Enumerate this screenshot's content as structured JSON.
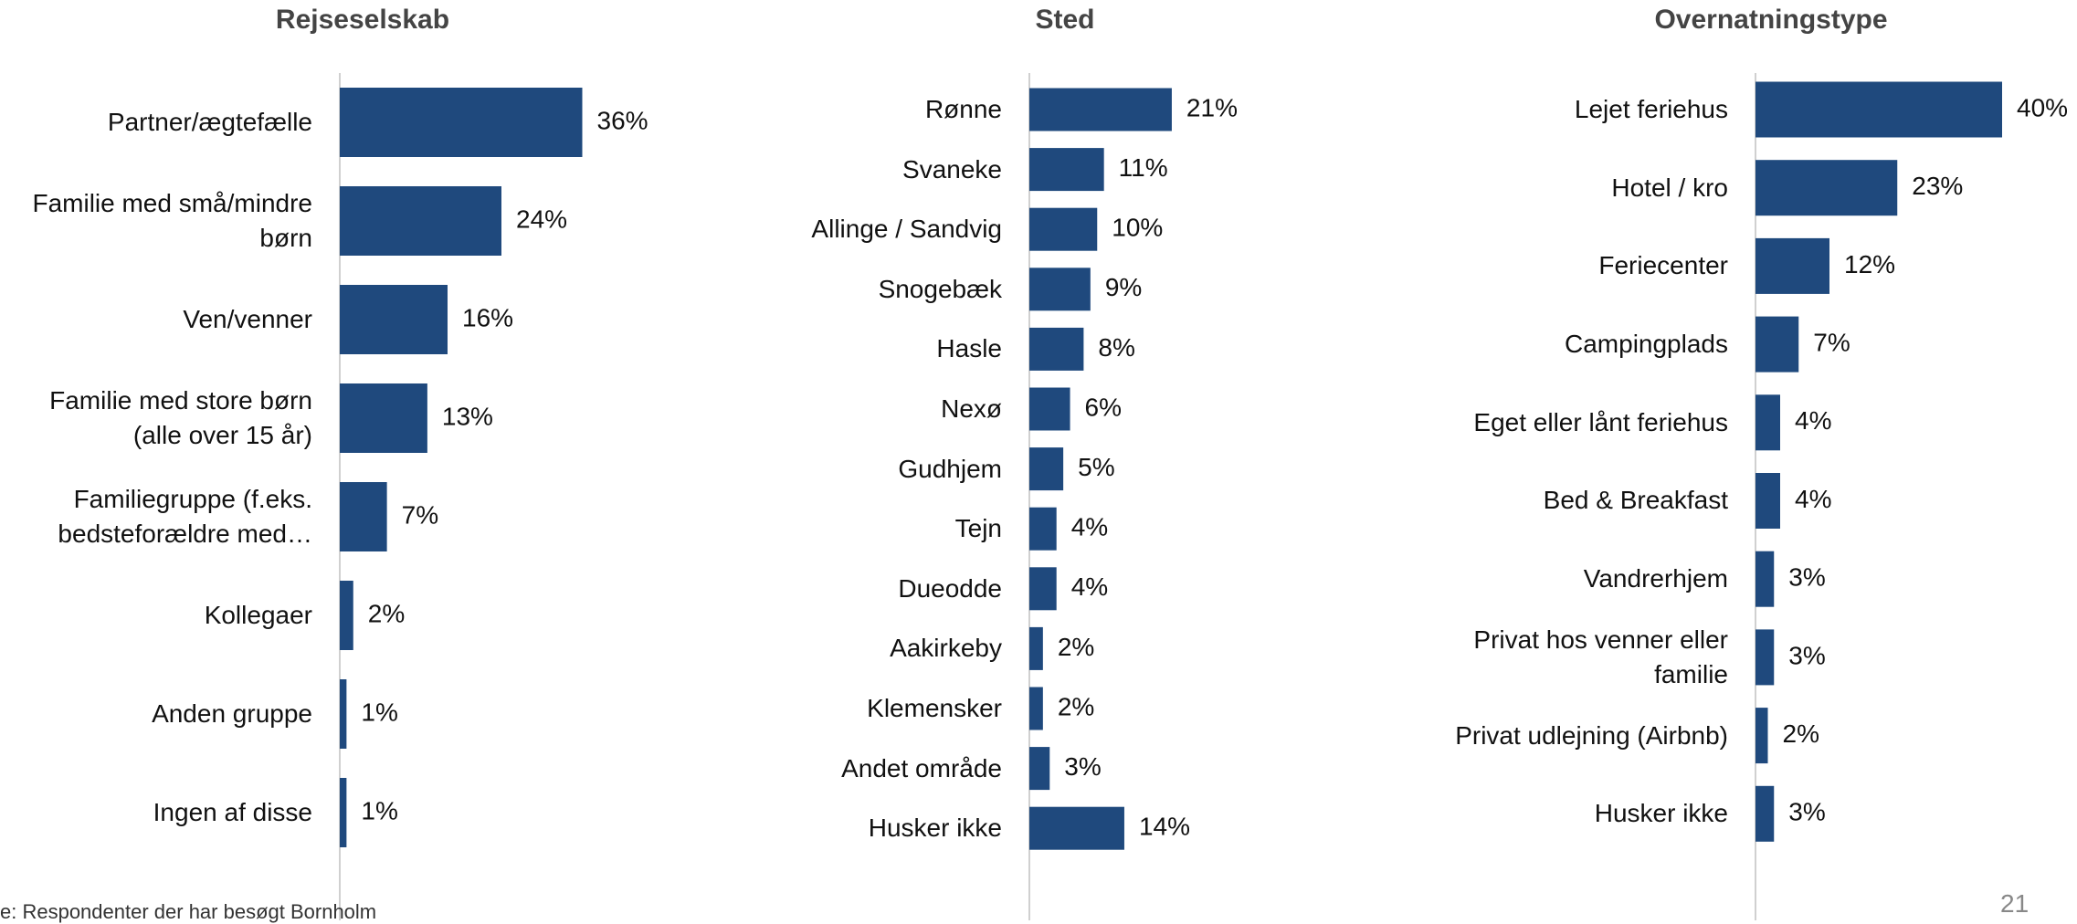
{
  "chart_data": [
    {
      "type": "barh",
      "title": "Rejseselskab",
      "categories": [
        "Partner/ægtefælle",
        "Familie med små/mindre børn",
        "Ven/venner",
        "Familie med store børn (alle over 15 år)",
        "Familiegruppe (f.eks. bedsteforældre med…",
        "Kollegaer",
        "Anden gruppe",
        "Ingen af disse"
      ],
      "values": [
        36,
        24,
        16,
        13,
        7,
        2,
        1,
        1
      ],
      "value_labels": [
        "36%",
        "24%",
        "16%",
        "13%",
        "7%",
        "2%",
        "1%",
        "1%"
      ],
      "color": "#1f497d",
      "xlim": [
        0,
        40
      ]
    },
    {
      "type": "barh",
      "title": "Sted",
      "categories": [
        "Rønne",
        "Svaneke",
        "Allinge / Sandvig",
        "Snogebæk",
        "Hasle",
        "Nexø",
        "Gudhjem",
        "Tejn",
        "Dueodde",
        "Aakirkeby",
        "Klemensker",
        "Andet område",
        "Husker ikke"
      ],
      "values": [
        21,
        11,
        10,
        9,
        8,
        6,
        5,
        4,
        4,
        2,
        2,
        3,
        14
      ],
      "value_labels": [
        "21%",
        "11%",
        "10%",
        "9%",
        "8%",
        "6%",
        "5%",
        "4%",
        "4%",
        "2%",
        "2%",
        "3%",
        "14%"
      ],
      "color": "#1f497d",
      "xlim": [
        0,
        40
      ]
    },
    {
      "type": "barh",
      "title": "Overnatningstype",
      "categories": [
        "Lejet feriehus",
        "Hotel / kro",
        "Feriecenter",
        "Campingplads",
        "Eget eller lånt feriehus",
        "Bed & Breakfast",
        "Vandrerhjem",
        "Privat hos venner eller familie",
        "Privat udlejning (Airbnb)",
        "Husker ikke"
      ],
      "values": [
        40,
        23,
        12,
        7,
        4,
        4,
        3,
        3,
        2,
        3
      ],
      "value_labels": [
        "40%",
        "23%",
        "12%",
        "7%",
        "4%",
        "4%",
        "3%",
        "3%",
        "2%",
        "3%"
      ],
      "color": "#1f497d",
      "xlim": [
        0,
        40
      ]
    }
  ],
  "footnote": "e: Respondenter der har besøgt Bornholm",
  "page_number": "21"
}
